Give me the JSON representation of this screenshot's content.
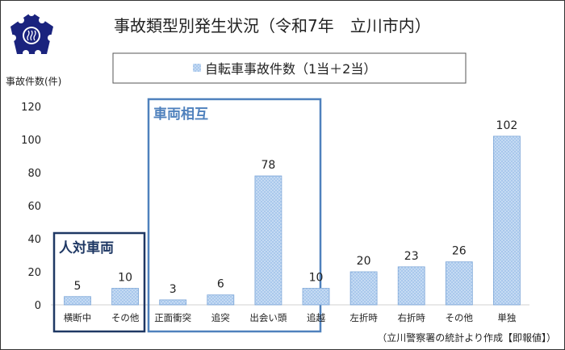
{
  "chart_data": {
    "type": "bar",
    "title": "事故類型別発生状況（令和7年　立川市内）",
    "ylabel": "事故件数(件)",
    "xlabel": "",
    "ylim": [
      0,
      120
    ],
    "yticks": [
      0,
      20,
      40,
      60,
      80,
      100,
      120
    ],
    "grid": false,
    "legend": {
      "placement": "top",
      "entries": [
        "自転車事故件数（1当＋2当）"
      ]
    },
    "categories": [
      "横断中",
      "その他",
      "正面衝突",
      "追突",
      "出会い頭",
      "追越",
      "左折時",
      "右折時",
      "その他",
      "単独"
    ],
    "series": [
      {
        "name": "自転車事故件数（1当＋2当）",
        "values": [
          5,
          10,
          3,
          6,
          78,
          10,
          20,
          23,
          26,
          102
        ]
      }
    ],
    "groups": [
      {
        "label": "人対車両",
        "from": 0,
        "to": 1,
        "color": "#1f3864"
      },
      {
        "label": "車両相互",
        "from": 2,
        "to": 8,
        "color": "#4f81bd"
      }
    ],
    "source_note": "（立川警察署の統計より作成【即報値】）",
    "colors": {
      "bar_fill": "#a9c8ec",
      "bar_stroke": "#7ea7d8",
      "title": "#222222"
    }
  }
}
